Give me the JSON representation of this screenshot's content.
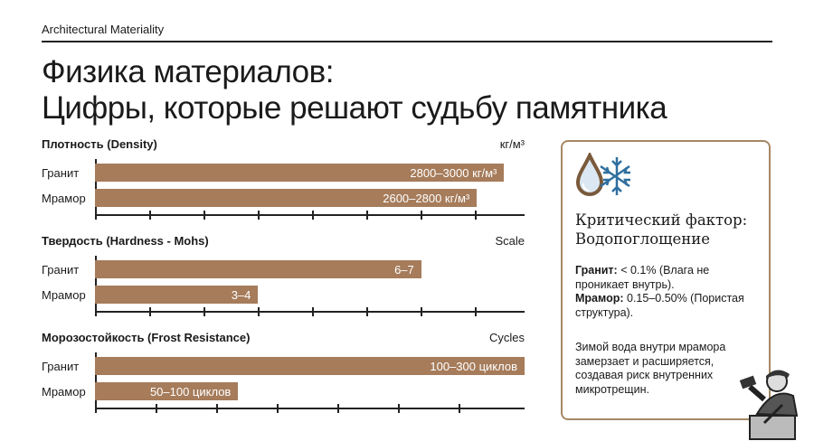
{
  "header": {
    "kicker": "Architectural Materiality",
    "title_line1": "Физика материалов:",
    "title_line2": "Цифры, которые решают судьбу памятника"
  },
  "colors": {
    "bar": "#a67c5b",
    "card_border": "#a58866",
    "text": "#1a1a1a"
  },
  "chart_data": [
    {
      "type": "bar",
      "orientation": "horizontal",
      "title": "Плотность (Density)",
      "unit": "кг/м³",
      "categories": [
        "Гранит",
        "Мрамор"
      ],
      "values": [
        3000,
        2800
      ],
      "labels": [
        "2800–3000 кг/м³",
        "2600–2800 кг/м³"
      ],
      "xlim": [
        0,
        3150
      ],
      "ticks": 8
    },
    {
      "type": "bar",
      "orientation": "horizontal",
      "title": "Твердость (Hardness - Mohs)",
      "unit": "Scale",
      "categories": [
        "Гранит",
        "Мрамор"
      ],
      "values": [
        6,
        3
      ],
      "labels": [
        "6–7",
        "3–4"
      ],
      "xlim": [
        0,
        7.9
      ],
      "ticks": 8
    },
    {
      "type": "bar",
      "orientation": "horizontal",
      "title": "Морозостойкость (Frost Resistance)",
      "unit": "Cycles",
      "categories": [
        "Гранит",
        "Мрамор"
      ],
      "values": [
        300,
        100
      ],
      "labels": [
        "100–300 циклов",
        "50–100 циклов"
      ],
      "xlim": [
        0,
        300
      ],
      "ticks": 7
    }
  ],
  "card": {
    "icons": [
      "water-drop-icon",
      "snowflake-icon"
    ],
    "heading1": "Критический фактор:",
    "heading2": "Водопоглощение",
    "granite_label": "Гранит:",
    "granite_text": " < 0.1% (Влага не проникает внутрь).",
    "marble_label": "Мрамор:",
    "marble_text": " 0.15–0.50% (Пористая структура).",
    "note": "Зимой вода внутри мрамора замерзает и расширяется, создавая риск внутренних микротрещин."
  }
}
